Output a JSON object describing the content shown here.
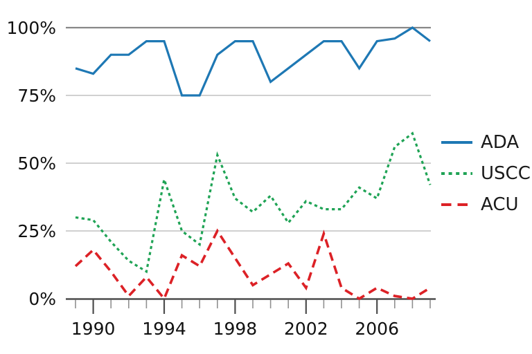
{
  "chart_data": {
    "type": "line",
    "title": "",
    "xlabel": "",
    "ylabel": "",
    "x": [
      1989,
      1990,
      1991,
      1992,
      1993,
      1994,
      1995,
      1996,
      1997,
      1998,
      1999,
      2000,
      2001,
      2002,
      2003,
      2004,
      2005,
      2006,
      2007,
      2008,
      2009
    ],
    "xlim": [
      1989,
      2009
    ],
    "ylim": [
      0,
      100
    ],
    "y_ticks": [
      100,
      75,
      50,
      25,
      0
    ],
    "y_tick_labels": [
      "100%",
      "75%",
      "50%",
      "25%",
      "0%"
    ],
    "x_major_ticks": [
      1990,
      1994,
      1998,
      2002,
      2006
    ],
    "x_tick_labels": [
      "1990",
      "1994",
      "1998",
      "2002",
      "2006"
    ],
    "minor_ticks_every_year": true,
    "grid": "horizontal",
    "legend_position": "right",
    "series": [
      {
        "name": "ADA",
        "style": "solid",
        "color": "#1e78b4",
        "values": [
          85,
          83,
          90,
          90,
          95,
          95,
          75,
          75,
          90,
          95,
          95,
          80,
          85,
          90,
          95,
          95,
          85,
          95,
          96,
          100,
          95
        ]
      },
      {
        "name": "USCC",
        "style": "dotted",
        "color": "#1fa355",
        "values": [
          30,
          29,
          21,
          14,
          10,
          44,
          25,
          20,
          53,
          37,
          32,
          38,
          28,
          36,
          33,
          33,
          41,
          37,
          56,
          61,
          42
        ]
      },
      {
        "name": "ACU",
        "style": "dashed",
        "color": "#dc2126",
        "values": [
          12,
          18,
          10,
          1,
          8,
          0,
          16,
          12,
          25,
          15,
          5,
          9,
          13,
          4,
          24,
          4,
          0,
          4,
          1,
          0,
          4
        ]
      }
    ],
    "axis_color": "#4d4d4d",
    "top_grid_color": "#878787",
    "minor_grid_color": "#c9c9c9",
    "minor_tick_color": "#909090",
    "label_color": "#111111"
  }
}
